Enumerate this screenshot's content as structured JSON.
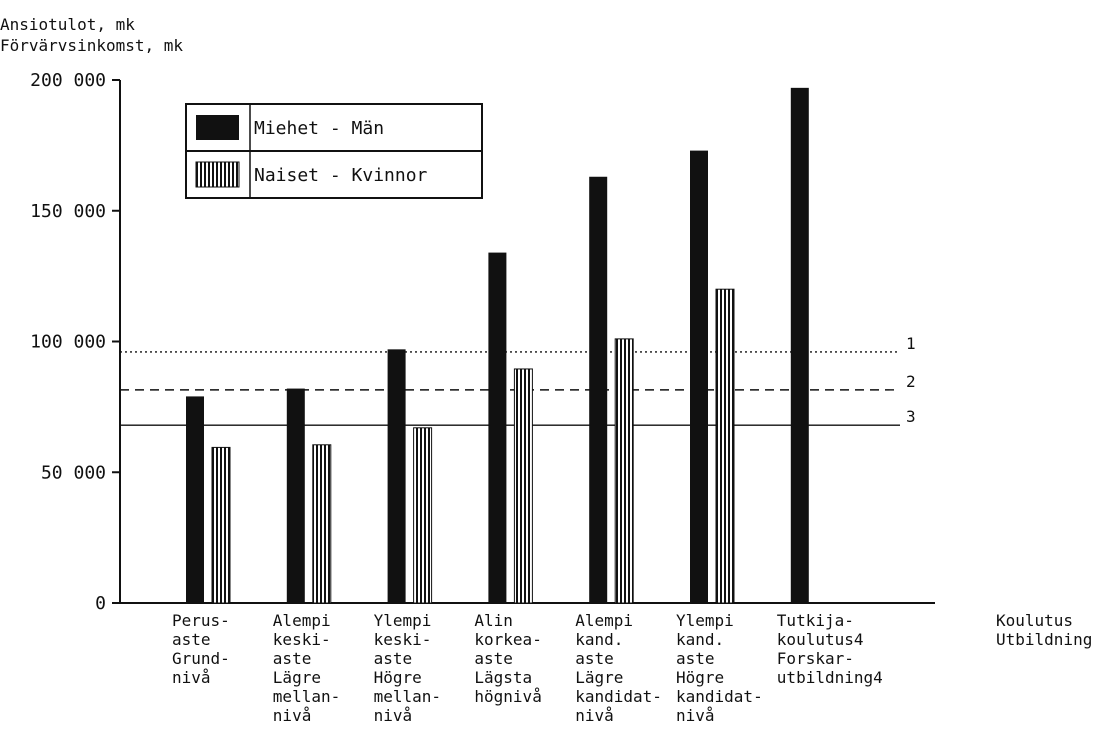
{
  "chart_data": {
    "type": "bar",
    "ylabel": [
      "Ansiotulot, mk",
      "Förvärvsinkomst, mk"
    ],
    "xlabel": [
      "Koulutus",
      "Utbildning"
    ],
    "ylim": [
      0,
      200000
    ],
    "yticks": [
      {
        "value": 0,
        "label": "0"
      },
      {
        "value": 50000,
        "label": "50 000"
      },
      {
        "value": 100000,
        "label": "100 000"
      },
      {
        "value": 150000,
        "label": "150 000"
      },
      {
        "value": 200000,
        "label": "200 000"
      }
    ],
    "categories": [
      [
        "Perus-",
        "aste",
        "Grund-",
        "nivå"
      ],
      [
        "Alempi",
        "keski-",
        "aste",
        "Lägre",
        "mellan-",
        "nivå"
      ],
      [
        "Ylempi",
        "keski-",
        "aste",
        "Högre",
        "mellan-",
        "nivå"
      ],
      [
        "Alin",
        "korkea-",
        "aste",
        "Lägsta",
        "högnivå"
      ],
      [
        "Alempi",
        "kand.",
        "aste",
        "Lägre",
        "kandidat-",
        "nivå"
      ],
      [
        "Ylempi",
        "kand.",
        "aste",
        "Högre",
        "kandidat-",
        "nivå"
      ],
      [
        "Tutkija-",
        "koulutus4",
        "Forskar-",
        "utbildning4"
      ]
    ],
    "series": [
      {
        "name": "Miehet - Män",
        "color": "#111111",
        "fill": "solid",
        "values": [
          79000,
          82000,
          97000,
          134000,
          163000,
          173000,
          197000
        ]
      },
      {
        "name": "Naiset - Kvinnor",
        "color": "#111111",
        "fill": "vertical-hatch",
        "values": [
          59500,
          60500,
          67000,
          89500,
          101000,
          120000,
          null
        ]
      }
    ],
    "reference_lines": [
      {
        "label": "1",
        "value": 96000,
        "style": "dotted"
      },
      {
        "label": "2",
        "value": 81500,
        "style": "dashed"
      },
      {
        "label": "3",
        "value": 68000,
        "style": "solid"
      }
    ],
    "legend_position": "top-left",
    "grid": false
  }
}
